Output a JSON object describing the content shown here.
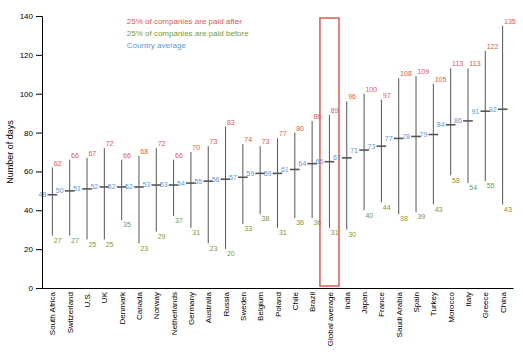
{
  "chart_data": {
    "type": "range",
    "categories": [
      "South Africa",
      "Switzerland",
      "U.S.",
      "UK",
      "Denmark",
      "Canada",
      "Norway",
      "Netherlands",
      "Germany",
      "Australia",
      "Russia",
      "Sweden",
      "Belgium",
      "Poland",
      "Chile",
      "Brazil",
      "Global average",
      "India",
      "Japan",
      "France",
      "Saudi Arabia",
      "Spain",
      "Turkey",
      "Morocco",
      "Italy",
      "Greece",
      "China"
    ],
    "ylabel": "Number of days",
    "series": [
      {
        "name": "25% of companies are paid after",
        "color": "#e05a50",
        "values": [
          62,
          66,
          67,
          72,
          66,
          68,
          72,
          66,
          70,
          73,
          83,
          74,
          73,
          77,
          80,
          86,
          89,
          96,
          100,
          97,
          108,
          109,
          105,
          113,
          113,
          122,
          135
        ]
      },
      {
        "name": "25% of companies are paid before",
        "color": "#7a9a3a",
        "values": [
          27,
          27,
          25,
          25,
          35,
          23,
          29,
          37,
          31,
          23,
          20,
          33,
          38,
          31,
          36,
          36,
          31,
          30,
          40,
          44,
          38,
          39,
          43,
          58,
          54,
          55,
          43
        ]
      },
      {
        "name": "Country average",
        "color": "#5b9bd5",
        "values": [
          48,
          50,
          51,
          52,
          52,
          52,
          53,
          53,
          54,
          55,
          56,
          57,
          59,
          59,
          61,
          64,
          65,
          67,
          71,
          73,
          77,
          78,
          79,
          84,
          86,
          91,
          92
        ]
      }
    ],
    "color": "#555555",
    "ylim": [
      0,
      140
    ],
    "yticks": [
      0,
      20,
      40,
      60,
      80,
      100,
      120,
      140
    ],
    "grid": false,
    "legend": "upper left",
    "data_labels": true,
    "highlight": {
      "category": "Global average",
      "color": "#e05a50"
    }
  }
}
